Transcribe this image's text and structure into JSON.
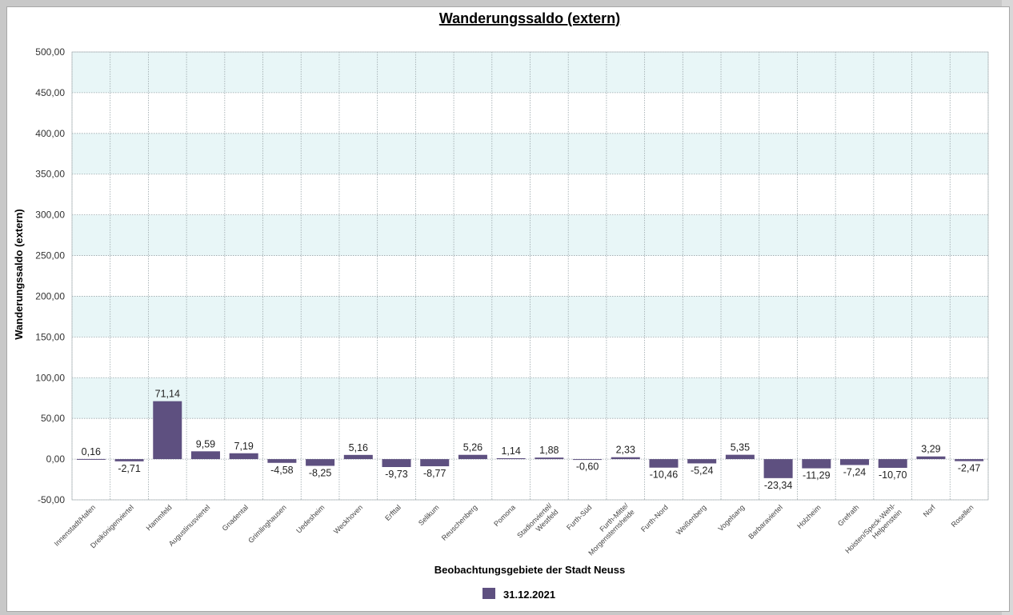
{
  "chart_data": {
    "type": "bar",
    "title": "Wanderungssaldo (extern)",
    "xlabel": "Beobachtungsgebiete der Stadt Neuss",
    "ylabel": "Wanderungssaldo (extern)",
    "ylim": [
      -50,
      500
    ],
    "y_ticks": [
      "500,00",
      "450,00",
      "400,00",
      "350,00",
      "300,00",
      "250,00",
      "200,00",
      "150,00",
      "100,00",
      "50,00",
      "0,00",
      "-50,00"
    ],
    "grid": true,
    "legend_position": "bottom",
    "categories": [
      "Innenstadt/Hafen",
      "Dreikönigenviertel",
      "Hammfeld",
      "Augustinusviertel",
      "Gnadental",
      "Grimlinghausen",
      "Uedesheim",
      "Weckhoven",
      "Erfttal",
      "Selikum",
      "Reuschenberg",
      "Pomona",
      "Stadionviertel/ Westfeld",
      "Furth-Süd",
      "Furth-Mitte/ Morgensternsheide",
      "Furth-Nord",
      "Weißenberg",
      "Vogelsang",
      "Barbaraviertel",
      "Holzheim",
      "Grefrath",
      "Hoisten/Speck-Wehl- Helpenstein",
      "Norf",
      "Rosellen"
    ],
    "series": [
      {
        "name": "31.12.2021",
        "color": "#5e5080",
        "values": [
          0.16,
          -2.71,
          71.14,
          9.59,
          7.19,
          -4.58,
          -8.25,
          5.16,
          -9.73,
          -8.77,
          5.26,
          1.14,
          1.88,
          -0.6,
          2.33,
          -10.46,
          -5.24,
          5.35,
          -23.34,
          -11.29,
          -7.24,
          -10.7,
          3.29,
          -2.47
        ],
        "labels": [
          "0,16",
          "-2,71",
          "71,14",
          "9,59",
          "7,19",
          "-4,58",
          "-8,25",
          "5,16",
          "-9,73",
          "-8,77",
          "5,26",
          "1,14",
          "1,88",
          "-0,60",
          "2,33",
          "-10,46",
          "-5,24",
          "5,35",
          "-23,34",
          "-11,29",
          "-7,24",
          "-10,70",
          "3,29",
          "-2,47"
        ]
      }
    ],
    "colors": {
      "band": "#e8f6f7",
      "grid": "#9aa6aa",
      "bar": "#5e5080"
    }
  }
}
